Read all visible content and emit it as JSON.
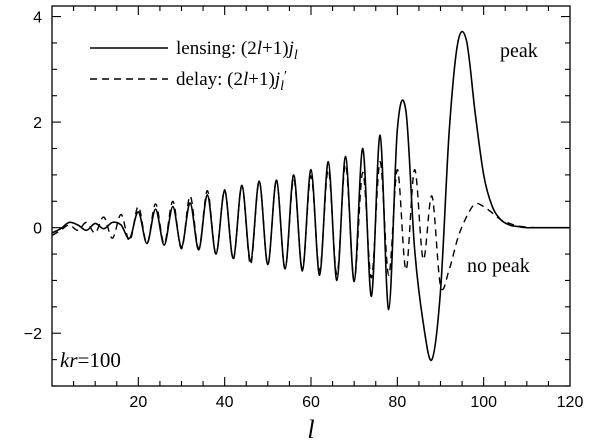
{
  "chart_data": {
    "type": "line",
    "xlabel": "l",
    "ylabel": "",
    "xlim": [
      0,
      120
    ],
    "ylim": [
      -3,
      4.2
    ],
    "xticks": [
      20,
      40,
      60,
      80,
      100,
      120
    ],
    "yticks": [
      -2,
      0,
      2,
      4
    ],
    "grid": false,
    "legend_position": "top-left",
    "series": [
      {
        "name_prefix": "lensing: (2",
        "name_mid": "+1)",
        "name_func": "j",
        "name_sub": "l",
        "style": "solid",
        "color": "#000000",
        "x": [
          0,
          2,
          4,
          6,
          8,
          10,
          12,
          14,
          16,
          18,
          20,
          22,
          24,
          26,
          28,
          30,
          32,
          34,
          36,
          38,
          40,
          42,
          44,
          46,
          48,
          50,
          52,
          54,
          56,
          58,
          60,
          62,
          64,
          66,
          68,
          70,
          72,
          74,
          76,
          78,
          80,
          82,
          84,
          86,
          88,
          90,
          92,
          94,
          96,
          98,
          100,
          102,
          104,
          106,
          108,
          110,
          112,
          114,
          116,
          118,
          120
        ],
        "y": [
          -0.1,
          -0.02,
          0.1,
          0.05,
          -0.05,
          0.08,
          -0.02,
          0.1,
          0.05,
          -0.2,
          0.3,
          -0.3,
          0.35,
          -0.33,
          0.4,
          -0.37,
          0.47,
          -0.42,
          0.62,
          -0.5,
          0.7,
          -0.58,
          0.8,
          -0.64,
          0.88,
          -0.7,
          0.9,
          -0.78,
          1.0,
          -0.82,
          1.1,
          -0.9,
          1.25,
          -1.0,
          1.35,
          -1.02,
          1.5,
          -1.3,
          1.75,
          -1.55,
          1.85,
          2.2,
          -0.4,
          -1.8,
          -2.5,
          -1.2,
          1.8,
          3.5,
          3.55,
          2.2,
          1.0,
          0.4,
          0.15,
          0.05,
          0.02,
          0.0,
          0.0,
          0.0,
          0.0,
          0.0,
          0.0
        ]
      },
      {
        "name_prefix": "delay: (2",
        "name_mid": "+1)",
        "name_func": "j",
        "name_sub": "l",
        "name_prime": "′",
        "style": "dashed",
        "color": "#000000",
        "x": [
          0,
          2,
          4,
          6,
          8,
          10,
          12,
          14,
          16,
          18,
          20,
          22,
          24,
          26,
          28,
          30,
          32,
          34,
          36,
          38,
          40,
          42,
          44,
          46,
          48,
          50,
          52,
          54,
          56,
          58,
          60,
          62,
          64,
          66,
          68,
          70,
          72,
          74,
          76,
          78,
          80,
          82,
          84,
          86,
          88,
          90,
          92,
          94,
          96,
          98,
          100,
          102,
          104,
          106,
          108,
          110,
          112,
          114,
          116,
          118,
          120
        ],
        "y": [
          -0.15,
          -0.05,
          0.05,
          -0.05,
          0.1,
          -0.1,
          0.2,
          -0.2,
          0.25,
          -0.25,
          0.4,
          -0.3,
          0.45,
          -0.3,
          0.5,
          -0.4,
          0.6,
          -0.4,
          0.7,
          -0.5,
          0.72,
          -0.6,
          0.8,
          -0.7,
          0.88,
          -0.7,
          0.9,
          -0.78,
          0.92,
          -0.78,
          0.98,
          -0.82,
          1.1,
          -0.88,
          1.2,
          -1.0,
          1.05,
          -0.95,
          1.25,
          -0.9,
          1.1,
          -0.8,
          1.1,
          -0.6,
          0.6,
          -1.1,
          -0.8,
          -0.2,
          0.2,
          0.45,
          0.4,
          0.28,
          0.15,
          0.08,
          0.03,
          0.01,
          0.0,
          0.0,
          0.0,
          0.0,
          0.0
        ]
      }
    ],
    "annotations": {
      "peak": "peak",
      "no_peak": "no peak",
      "kr_var": "kr",
      "kr_value": "=100"
    }
  }
}
